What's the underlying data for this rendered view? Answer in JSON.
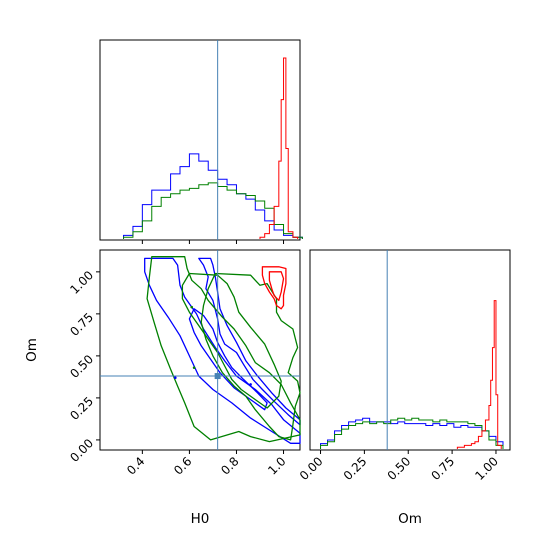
{
  "chart_data": [
    {
      "panel": "H0 marginal",
      "type": "histogram",
      "x_range": [
        0.22,
        1.07
      ],
      "truth": 0.72,
      "x_ticks": [
        0.4,
        0.6,
        0.8,
        1.0
      ],
      "series": [
        {
          "color": "#0000ff",
          "edges": [
            0.32,
            0.36,
            0.4,
            0.44,
            0.48,
            0.52,
            0.56,
            0.6,
            0.64,
            0.68,
            0.72,
            0.76,
            0.8,
            0.84,
            0.88,
            0.92,
            0.96,
            1.0,
            1.04,
            1.08
          ],
          "heights": [
            0.02,
            0.07,
            0.19,
            0.27,
            0.27,
            0.36,
            0.4,
            0.47,
            0.43,
            0.38,
            0.33,
            0.3,
            0.25,
            0.22,
            0.16,
            0.1,
            0.05,
            0.02,
            0.01
          ]
        },
        {
          "color": "#008000",
          "edges": [
            0.32,
            0.36,
            0.4,
            0.44,
            0.48,
            0.52,
            0.56,
            0.6,
            0.64,
            0.68,
            0.72,
            0.76,
            0.8,
            0.84,
            0.88,
            0.92,
            0.96,
            1.0,
            1.04,
            1.08
          ],
          "heights": [
            0.01,
            0.04,
            0.1,
            0.18,
            0.23,
            0.25,
            0.27,
            0.28,
            0.3,
            0.31,
            0.29,
            0.27,
            0.25,
            0.24,
            0.21,
            0.17,
            0.08,
            0.03,
            0.01
          ]
        },
        {
          "color": "#ff0000",
          "edges": [
            0.9,
            0.92,
            0.94,
            0.96,
            0.98,
            0.99,
            1.0,
            1.01,
            1.02,
            1.04,
            1.06
          ],
          "heights": [
            0.01,
            0.03,
            0.08,
            0.18,
            0.43,
            0.77,
            1.0,
            0.5,
            0.04,
            0.01
          ]
        }
      ]
    },
    {
      "panel": "Om marginal",
      "type": "histogram",
      "xlabel": "Om",
      "x_range": [
        -0.06,
        1.08
      ],
      "truth": 0.38,
      "x_ticks": [
        0.0,
        0.25,
        0.5,
        0.75,
        1.0
      ],
      "x_tick_labels": [
        "0.00",
        "0.25",
        "0.50",
        "0.75",
        "1.00"
      ],
      "series": [
        {
          "color": "#0000ff",
          "edges": [
            0.0,
            0.04,
            0.08,
            0.12,
            0.16,
            0.2,
            0.24,
            0.28,
            0.32,
            0.36,
            0.4,
            0.44,
            0.48,
            0.52,
            0.56,
            0.6,
            0.64,
            0.68,
            0.72,
            0.76,
            0.8,
            0.84,
            0.88,
            0.92,
            0.96,
            1.0,
            1.04
          ],
          "heights": [
            0.03,
            0.05,
            0.1,
            0.13,
            0.15,
            0.16,
            0.17,
            0.15,
            0.15,
            0.15,
            0.14,
            0.15,
            0.14,
            0.14,
            0.14,
            0.13,
            0.14,
            0.13,
            0.14,
            0.12,
            0.13,
            0.12,
            0.12,
            0.1,
            0.07,
            0.04
          ]
        },
        {
          "color": "#008000",
          "edges": [
            0.0,
            0.04,
            0.08,
            0.12,
            0.16,
            0.2,
            0.24,
            0.28,
            0.32,
            0.36,
            0.4,
            0.44,
            0.48,
            0.52,
            0.56,
            0.6,
            0.64,
            0.68,
            0.72,
            0.76,
            0.8,
            0.84,
            0.88,
            0.92,
            0.96,
            1.0,
            1.04
          ],
          "heights": [
            0.02,
            0.04,
            0.08,
            0.11,
            0.13,
            0.14,
            0.15,
            0.14,
            0.15,
            0.14,
            0.16,
            0.17,
            0.16,
            0.17,
            0.16,
            0.16,
            0.15,
            0.16,
            0.15,
            0.15,
            0.15,
            0.14,
            0.13,
            0.1,
            0.05,
            0.02
          ]
        },
        {
          "color": "#ff0000",
          "edges": [
            0.78,
            0.82,
            0.86,
            0.88,
            0.9,
            0.92,
            0.94,
            0.96,
            0.97,
            0.98,
            0.99,
            1.0,
            1.01,
            1.03
          ],
          "heights": [
            0.01,
            0.02,
            0.03,
            0.04,
            0.07,
            0.1,
            0.16,
            0.24,
            0.38,
            0.56,
            0.82,
            0.3,
            0.02
          ]
        }
      ]
    },
    {
      "panel": "H0 vs Om contours",
      "type": "contour",
      "xlabel": "H0",
      "ylabel": "Om",
      "x_range": [
        0.22,
        1.07
      ],
      "y_range": [
        -0.06,
        1.13
      ],
      "truth": [
        0.72,
        0.38
      ],
      "x_ticks": [
        0.4,
        0.6,
        0.8,
        1.0
      ],
      "y_ticks": [
        0.0,
        0.25,
        0.5,
        0.75,
        1.0
      ],
      "y_tick_labels": [
        "0.00",
        "0.25",
        "0.50",
        "0.75",
        "1.00"
      ],
      "contours": [
        {
          "color": "#0000ff",
          "points": [
            [
              0.41,
              1.08
            ],
            [
              0.53,
              1.08
            ],
            [
              0.55,
              1.04
            ],
            [
              0.56,
              0.92
            ],
            [
              0.58,
              0.85
            ],
            [
              0.63,
              0.75
            ],
            [
              0.66,
              0.66
            ],
            [
              0.71,
              0.55
            ],
            [
              0.75,
              0.47
            ],
            [
              0.8,
              0.38
            ],
            [
              0.88,
              0.3
            ],
            [
              0.95,
              0.21
            ],
            [
              1.0,
              0.12
            ],
            [
              1.07,
              0.04
            ],
            [
              1.07,
              -0.02
            ],
            [
              1.03,
              -0.02
            ],
            [
              0.95,
              0.05
            ],
            [
              0.86,
              0.13
            ],
            [
              0.78,
              0.22
            ],
            [
              0.7,
              0.3
            ],
            [
              0.64,
              0.38
            ],
            [
              0.6,
              0.5
            ],
            [
              0.56,
              0.62
            ],
            [
              0.51,
              0.73
            ],
            [
              0.46,
              0.83
            ],
            [
              0.43,
              0.92
            ],
            [
              0.41,
              1.0
            ]
          ]
        },
        {
          "color": "#0000ff",
          "points": [
            [
              0.62,
              0.78
            ],
            [
              0.66,
              0.74
            ],
            [
              0.7,
              0.66
            ],
            [
              0.72,
              0.58
            ],
            [
              0.75,
              0.5
            ],
            [
              0.78,
              0.43
            ],
            [
              0.83,
              0.36
            ],
            [
              0.89,
              0.28
            ],
            [
              0.93,
              0.22
            ],
            [
              0.92,
              0.18
            ],
            [
              0.86,
              0.24
            ],
            [
              0.79,
              0.31
            ],
            [
              0.73,
              0.4
            ],
            [
              0.69,
              0.48
            ],
            [
              0.65,
              0.56
            ],
            [
              0.62,
              0.64
            ],
            [
              0.6,
              0.72
            ]
          ]
        },
        {
          "color": "#0000ff",
          "points": [
            [
              0.64,
              1.08
            ],
            [
              0.66,
              1.04
            ],
            [
              0.68,
              0.97
            ],
            [
              0.67,
              0.9
            ],
            [
              0.7,
              0.83
            ],
            [
              0.72,
              0.72
            ],
            [
              0.73,
              0.63
            ],
            [
              0.75,
              0.57
            ],
            [
              0.8,
              0.52
            ],
            [
              0.83,
              0.45
            ],
            [
              0.87,
              0.36
            ],
            [
              0.91,
              0.3
            ],
            [
              0.96,
              0.23
            ],
            [
              1.02,
              0.15
            ],
            [
              1.07,
              0.09
            ],
            [
              1.07,
              0.12
            ],
            [
              1.01,
              0.19
            ],
            [
              0.95,
              0.28
            ],
            [
              0.89,
              0.38
            ],
            [
              0.84,
              0.47
            ],
            [
              0.8,
              0.58
            ],
            [
              0.76,
              0.68
            ],
            [
              0.73,
              0.78
            ],
            [
              0.72,
              0.88
            ],
            [
              0.71,
              0.97
            ],
            [
              0.7,
              1.04
            ],
            [
              0.69,
              1.08
            ]
          ]
        },
        {
          "color": "#008000",
          "points": [
            [
              0.44,
              1.09
            ],
            [
              0.58,
              1.09
            ],
            [
              0.59,
              1.02
            ],
            [
              0.61,
              0.95
            ],
            [
              0.65,
              0.9
            ],
            [
              0.68,
              0.83
            ],
            [
              0.74,
              0.73
            ],
            [
              0.79,
              0.66
            ],
            [
              0.84,
              0.56
            ],
            [
              0.88,
              0.46
            ],
            [
              0.94,
              0.4
            ],
            [
              0.99,
              0.33
            ],
            [
              1.03,
              0.22
            ],
            [
              1.07,
              0.12
            ],
            [
              1.07,
              0.03
            ],
            [
              0.94,
              -0.01
            ],
            [
              0.86,
              0.02
            ],
            [
              0.81,
              0.05
            ],
            [
              0.69,
              0.0
            ],
            [
              0.62,
              0.08
            ],
            [
              0.58,
              0.22
            ],
            [
              0.55,
              0.32
            ],
            [
              0.52,
              0.42
            ],
            [
              0.48,
              0.56
            ],
            [
              0.45,
              0.7
            ],
            [
              0.42,
              0.84
            ],
            [
              0.43,
              0.97
            ]
          ]
        },
        {
          "color": "#008000",
          "points": [
            [
              0.6,
              0.99
            ],
            [
              0.72,
              0.98
            ],
            [
              0.76,
              0.93
            ],
            [
              0.79,
              0.85
            ],
            [
              0.81,
              0.76
            ],
            [
              0.86,
              0.67
            ],
            [
              0.92,
              0.57
            ],
            [
              0.96,
              0.45
            ],
            [
              0.99,
              0.35
            ],
            [
              0.98,
              0.26
            ],
            [
              0.93,
              0.19
            ],
            [
              0.88,
              0.24
            ],
            [
              0.82,
              0.3
            ],
            [
              0.78,
              0.36
            ],
            [
              0.75,
              0.44
            ],
            [
              0.72,
              0.52
            ],
            [
              0.68,
              0.6
            ],
            [
              0.64,
              0.68
            ],
            [
              0.6,
              0.76
            ],
            [
              0.57,
              0.84
            ],
            [
              0.57,
              0.92
            ]
          ]
        },
        {
          "color": "#008000",
          "points": [
            [
              0.71,
              0.99
            ],
            [
              0.86,
              0.98
            ],
            [
              0.88,
              0.95
            ],
            [
              0.9,
              0.92
            ],
            [
              0.93,
              0.93
            ],
            [
              0.97,
              0.84
            ],
            [
              0.97,
              0.76
            ],
            [
              0.99,
              0.71
            ],
            [
              1.04,
              0.66
            ],
            [
              1.06,
              0.55
            ],
            [
              1.04,
              0.49
            ],
            [
              1.02,
              0.4
            ],
            [
              1.06,
              0.35
            ],
            [
              1.07,
              0.28
            ],
            [
              1.05,
              0.2
            ],
            [
              1.04,
              0.09
            ],
            [
              1.03,
              0.0
            ],
            [
              0.98,
              0.02
            ],
            [
              0.94,
              0.08
            ],
            [
              0.88,
              0.18
            ],
            [
              0.84,
              0.26
            ],
            [
              0.79,
              0.32
            ],
            [
              0.74,
              0.4
            ],
            [
              0.7,
              0.5
            ],
            [
              0.67,
              0.6
            ],
            [
              0.65,
              0.7
            ],
            [
              0.66,
              0.8
            ],
            [
              0.68,
              0.9
            ]
          ]
        },
        {
          "color": "#ff0000",
          "points": [
            [
              0.91,
              1.03
            ],
            [
              0.98,
              1.03
            ],
            [
              1.01,
              1.02
            ],
            [
              1.01,
              0.98
            ],
            [
              1.01,
              0.93
            ],
            [
              1.0,
              0.86
            ],
            [
              1.0,
              0.8
            ],
            [
              0.99,
              0.78
            ],
            [
              0.97,
              0.8
            ],
            [
              0.96,
              0.84
            ],
            [
              0.94,
              0.88
            ],
            [
              0.92,
              0.93
            ],
            [
              0.91,
              0.98
            ]
          ]
        },
        {
          "color": "#ff0000",
          "points": [
            [
              0.94,
              1.0
            ],
            [
              0.99,
              1.0
            ],
            [
              1.0,
              0.96
            ],
            [
              0.99,
              0.88
            ],
            [
              0.98,
              0.83
            ],
            [
              0.96,
              0.86
            ],
            [
              0.95,
              0.9
            ],
            [
              0.94,
              0.95
            ]
          ]
        }
      ],
      "points": [
        {
          "color": "#0000ff",
          "x": 0.54,
          "y": 0.37
        },
        {
          "color": "#008000",
          "x": 0.62,
          "y": 0.43
        },
        {
          "color": "#008000",
          "x": 0.61,
          "y": 0.79
        },
        {
          "color": "#0000ff",
          "x": 0.86,
          "y": 0.33
        }
      ]
    }
  ],
  "style": {
    "truth_color": "#4682b4",
    "axis_color": "#000000"
  }
}
